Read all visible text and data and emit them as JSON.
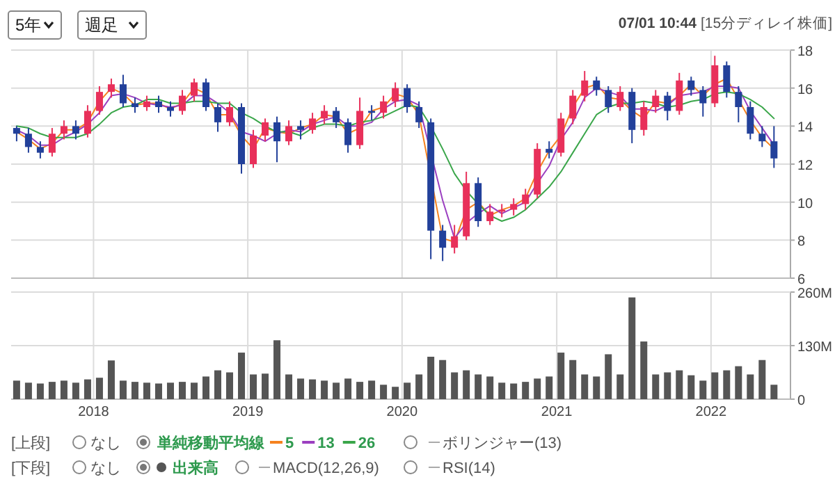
{
  "chart_data": [
    {
      "type": "candlestick",
      "title": "07/01 10:44",
      "subtitle": "[15分ディレイ株価]",
      "legend_title": "単純移動平均線",
      "legend": "bottom",
      "grid": true,
      "tick_labels": "y",
      "xlim": [
        "2017-06-20",
        "2022-07-08"
      ],
      "xticks": [
        "2018",
        "2019",
        "2020",
        "2021",
        "2022"
      ],
      "ylim": [
        6,
        18
      ],
      "yticks": [
        6,
        8,
        10,
        12,
        14,
        16,
        18
      ],
      "x": [
        "2017-07-03",
        "2017-07-31",
        "2017-08-28",
        "2017-09-25",
        "2017-10-23",
        "2017-11-20",
        "2017-12-18",
        "2018-01-15",
        "2018-02-12",
        "2018-03-12",
        "2018-04-09",
        "2018-05-07",
        "2018-06-04",
        "2018-07-02",
        "2018-07-30",
        "2018-08-27",
        "2018-09-24",
        "2018-10-22",
        "2018-11-19",
        "2018-12-17",
        "2019-01-14",
        "2019-02-11",
        "2019-03-11",
        "2019-04-08",
        "2019-05-06",
        "2019-06-03",
        "2019-07-01",
        "2019-07-29",
        "2019-08-26",
        "2019-09-23",
        "2019-10-21",
        "2019-11-18",
        "2019-12-16",
        "2020-01-13",
        "2020-02-10",
        "2020-03-09",
        "2020-04-06",
        "2020-05-04",
        "2020-06-01",
        "2020-06-29",
        "2020-07-27",
        "2020-08-24",
        "2020-09-21",
        "2020-10-19",
        "2020-11-16",
        "2020-12-14",
        "2021-01-11",
        "2021-02-08",
        "2021-03-08",
        "2021-04-05",
        "2021-05-03",
        "2021-05-31",
        "2021-06-28",
        "2021-07-26",
        "2021-08-23",
        "2021-09-20",
        "2021-10-18",
        "2021-11-15",
        "2021-12-13",
        "2022-01-10",
        "2022-02-07",
        "2022-03-07",
        "2022-04-04",
        "2022-05-02",
        "2022-05-30"
      ],
      "ohlc": [
        [
          13.9,
          14.0,
          13.2,
          13.6
        ],
        [
          13.6,
          13.9,
          12.6,
          12.9
        ],
        [
          12.9,
          13.2,
          12.3,
          12.6
        ],
        [
          12.6,
          13.9,
          12.4,
          13.6
        ],
        [
          13.6,
          14.3,
          13.3,
          14.0
        ],
        [
          14.0,
          14.3,
          13.3,
          13.6
        ],
        [
          13.6,
          15.1,
          13.4,
          14.8
        ],
        [
          14.8,
          16.1,
          14.6,
          15.8
        ],
        [
          15.8,
          16.5,
          15.5,
          16.2
        ],
        [
          16.2,
          16.7,
          15.0,
          15.2
        ],
        [
          15.2,
          15.5,
          14.7,
          15.0
        ],
        [
          15.0,
          15.6,
          14.8,
          15.3
        ],
        [
          15.3,
          15.6,
          14.7,
          15.0
        ],
        [
          15.0,
          15.3,
          14.5,
          14.8
        ],
        [
          14.8,
          15.9,
          14.6,
          15.6
        ],
        [
          15.6,
          16.5,
          15.3,
          16.3
        ],
        [
          16.3,
          16.5,
          14.8,
          15.0
        ],
        [
          15.0,
          15.2,
          13.7,
          14.2
        ],
        [
          14.2,
          15.3,
          14.0,
          15.0
        ],
        [
          15.0,
          15.2,
          11.5,
          12.0
        ],
        [
          12.0,
          13.8,
          11.8,
          13.5
        ],
        [
          13.5,
          14.4,
          13.2,
          14.2
        ],
        [
          14.2,
          14.5,
          12.1,
          13.2
        ],
        [
          13.2,
          14.3,
          13.0,
          14.0
        ],
        [
          14.0,
          14.3,
          13.3,
          13.8
        ],
        [
          13.8,
          14.7,
          13.6,
          14.4
        ],
        [
          14.4,
          15.1,
          14.1,
          14.8
        ],
        [
          14.8,
          15.0,
          13.9,
          14.2
        ],
        [
          14.2,
          14.4,
          12.6,
          13.0
        ],
        [
          13.0,
          15.5,
          12.8,
          14.8
        ],
        [
          14.8,
          15.1,
          14.3,
          14.7
        ],
        [
          14.7,
          15.6,
          14.4,
          15.3
        ],
        [
          15.3,
          16.3,
          15.0,
          16.0
        ],
        [
          16.0,
          16.2,
          14.7,
          15.0
        ],
        [
          15.0,
          15.3,
          13.9,
          14.2
        ],
        [
          14.2,
          14.4,
          7.0,
          8.5
        ],
        [
          8.5,
          8.8,
          6.9,
          7.6
        ],
        [
          7.6,
          8.8,
          7.3,
          8.2
        ],
        [
          8.2,
          11.6,
          8.0,
          11.0
        ],
        [
          11.0,
          11.3,
          8.7,
          9.0
        ],
        [
          9.0,
          9.9,
          8.8,
          9.5
        ],
        [
          9.5,
          9.9,
          9.2,
          9.6
        ],
        [
          9.6,
          10.2,
          9.3,
          9.9
        ],
        [
          9.9,
          10.7,
          9.6,
          10.4
        ],
        [
          10.4,
          13.1,
          10.2,
          12.8
        ],
        [
          12.8,
          13.2,
          12.3,
          12.6
        ],
        [
          12.6,
          14.7,
          12.4,
          14.4
        ],
        [
          14.4,
          15.9,
          14.1,
          15.6
        ],
        [
          15.6,
          16.9,
          15.3,
          16.4
        ],
        [
          16.4,
          16.6,
          15.6,
          15.9
        ],
        [
          15.9,
          16.1,
          14.7,
          15.0
        ],
        [
          15.0,
          16.1,
          14.8,
          15.8
        ],
        [
          15.8,
          16.0,
          13.1,
          13.8
        ],
        [
          13.8,
          15.3,
          13.5,
          15.0
        ],
        [
          15.0,
          15.9,
          14.7,
          15.6
        ],
        [
          15.6,
          15.8,
          14.3,
          14.8
        ],
        [
          14.8,
          16.8,
          14.6,
          16.4
        ],
        [
          16.4,
          16.6,
          15.6,
          15.9
        ],
        [
          15.9,
          16.1,
          14.5,
          15.2
        ],
        [
          15.2,
          17.7,
          15.0,
          17.2
        ],
        [
          17.2,
          17.4,
          15.5,
          15.8
        ],
        [
          15.8,
          16.1,
          14.2,
          15.0
        ],
        [
          15.0,
          15.3,
          13.3,
          13.6
        ],
        [
          13.6,
          14.0,
          12.9,
          13.2
        ],
        [
          13.2,
          14.0,
          11.8,
          12.3
        ]
      ],
      "series": [
        {
          "name": "5",
          "type": "line",
          "color": "#f5821f",
          "values": [
            13.7,
            13.3,
            12.8,
            13.1,
            13.8,
            13.8,
            14.2,
            15.3,
            16.0,
            15.7,
            15.1,
            15.2,
            15.2,
            14.9,
            15.2,
            16.0,
            15.7,
            14.6,
            14.6,
            13.5,
            12.8,
            13.9,
            13.7,
            13.6,
            13.9,
            14.1,
            14.6,
            14.5,
            13.6,
            13.9,
            14.8,
            15.0,
            15.7,
            15.5,
            14.6,
            null,
            8.1,
            7.9,
            9.6,
            10.0,
            9.3,
            9.6,
            9.8,
            10.2,
            11.6,
            12.7,
            13.5,
            15.0,
            16.0,
            16.2,
            15.5,
            15.4,
            14.8,
            14.4,
            15.3,
            15.2,
            15.6,
            16.2,
            15.6,
            16.2,
            16.5,
            15.4,
            14.3,
            13.4,
            12.8
          ]
        },
        {
          "name": "13",
          "type": "line",
          "color": "#9b3fc0",
          "values": [
            13.8,
            13.5,
            13.0,
            13.0,
            13.4,
            13.7,
            14.1,
            14.7,
            15.6,
            15.7,
            15.5,
            15.2,
            15.1,
            15.0,
            15.1,
            15.6,
            15.6,
            15.2,
            14.7,
            13.7,
            13.5,
            13.2,
            13.6,
            13.8,
            13.7,
            14.1,
            14.3,
            14.5,
            14.0,
            14.0,
            14.2,
            14.9,
            15.3,
            15.4,
            15.1,
            null,
            10.1,
            8.1,
            8.9,
            9.4,
            9.8,
            9.4,
            9.7,
            10.0,
            11.0,
            11.9,
            13.3,
            14.2,
            15.5,
            16.0,
            15.8,
            15.6,
            14.9,
            14.9,
            14.8,
            15.1,
            15.6,
            15.7,
            15.8,
            16.1,
            16.1,
            16.0,
            14.8,
            13.9,
            13.0
          ]
        },
        {
          "name": "26",
          "type": "line",
          "color": "#3aa64a",
          "values": [
            14.0,
            13.9,
            13.6,
            13.4,
            13.4,
            13.4,
            13.6,
            14.1,
            14.7,
            15.0,
            15.1,
            15.4,
            15.4,
            15.2,
            15.2,
            15.3,
            15.3,
            15.2,
            15.2,
            14.7,
            14.4,
            14.0,
            13.7,
            13.7,
            13.5,
            13.9,
            14.1,
            14.1,
            14.0,
            14.2,
            14.3,
            14.5,
            14.8,
            15.1,
            15.0,
            14.0,
            12.8,
            11.5,
            10.6,
            9.9,
            9.3,
            9.0,
            9.2,
            9.6,
            10.2,
            10.8,
            11.6,
            12.6,
            13.6,
            14.6,
            15.0,
            15.2,
            15.2,
            15.3,
            15.2,
            15.0,
            15.1,
            15.3,
            15.4,
            15.7,
            15.8,
            15.7,
            15.4,
            15.0,
            14.4
          ]
        }
      ]
    },
    {
      "type": "bar",
      "legend": "bottom",
      "grid": true,
      "xlim": [
        "2017-06-20",
        "2022-07-08"
      ],
      "xticks": [
        "2018",
        "2019",
        "2020",
        "2021",
        "2022"
      ],
      "ylim": [
        0,
        260
      ],
      "yticks": [
        0,
        {
          "value": 130,
          "label": "130M"
        },
        {
          "value": 260,
          "label": "260M"
        }
      ],
      "x": [
        "2017-07-03",
        "2017-07-31",
        "2017-08-28",
        "2017-09-25",
        "2017-10-23",
        "2017-11-20",
        "2017-12-18",
        "2018-01-15",
        "2018-02-12",
        "2018-03-12",
        "2018-04-09",
        "2018-05-07",
        "2018-06-04",
        "2018-07-02",
        "2018-07-30",
        "2018-08-27",
        "2018-09-24",
        "2018-10-22",
        "2018-11-19",
        "2018-12-17",
        "2019-01-14",
        "2019-02-11",
        "2019-03-11",
        "2019-04-08",
        "2019-05-06",
        "2019-06-03",
        "2019-07-01",
        "2019-07-29",
        "2019-08-26",
        "2019-09-23",
        "2019-10-21",
        "2019-11-18",
        "2019-12-16",
        "2020-01-13",
        "2020-02-10",
        "2020-03-09",
        "2020-04-06",
        "2020-05-04",
        "2020-06-01",
        "2020-06-29",
        "2020-07-27",
        "2020-08-24",
        "2020-09-21",
        "2020-10-19",
        "2020-11-16",
        "2020-12-14",
        "2021-01-11",
        "2021-02-08",
        "2021-03-08",
        "2021-04-05",
        "2021-05-03",
        "2021-05-31",
        "2021-06-28",
        "2021-07-26",
        "2021-08-23",
        "2021-09-20",
        "2021-10-18",
        "2021-11-15",
        "2021-12-13",
        "2022-01-10",
        "2022-02-07",
        "2022-03-07",
        "2022-04-04",
        "2022-05-02",
        "2022-05-30"
      ],
      "series": [
        {
          "name": "出来高",
          "color": "#555555",
          "values": [
            45,
            40,
            38,
            42,
            45,
            40,
            48,
            52,
            94,
            45,
            42,
            40,
            38,
            40,
            42,
            40,
            55,
            70,
            65,
            113,
            60,
            62,
            143,
            60,
            50,
            48,
            45,
            40,
            50,
            42,
            45,
            35,
            30,
            40,
            60,
            103,
            95,
            65,
            70,
            60,
            55,
            40,
            38,
            42,
            50,
            55,
            113,
            95,
            60,
            55,
            109,
            60,
            247,
            140,
            60,
            65,
            70,
            58,
            45,
            65,
            70,
            80,
            60,
            95,
            35
          ]
        }
      ]
    },
    {
      "type": "other",
      "annotations": [
        "5年",
        "週足",
        "[上段]",
        "なし",
        "ボリンジャー(13)",
        "[下段]",
        "なし",
        "MACD(12,26,9)",
        "RSI(14)"
      ]
    }
  ]
}
